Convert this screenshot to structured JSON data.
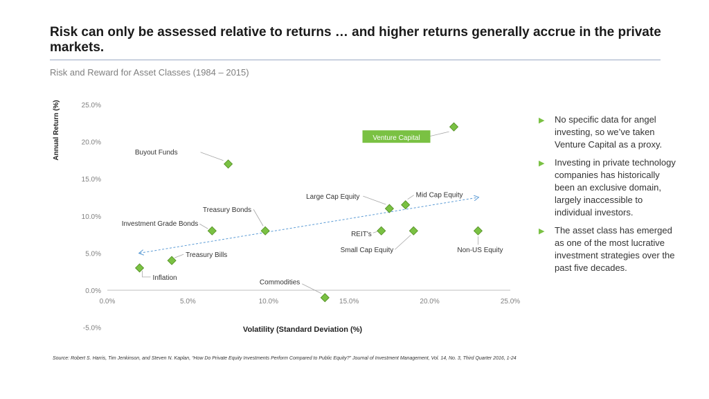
{
  "page": {
    "title": "Risk can only be assessed relative to returns … and higher returns generally accrue in the private markets.",
    "subtitle": "Risk and Reward for Asset Classes (1984 – 2015)",
    "source": "Source: Robert S. Harris, Tim Jenkinson, and Steven N. Kaplan, “How Do Private Equity Investments Perform Compared to Public Equity?” Journal of Investment Management, Vol. 14, No. 3, Third Quarter 2016, 1-24"
  },
  "bullets": [
    "No specific data for angel investing, so we’ve taken Venture Capital as a proxy.",
    "Investing in private technology companies has historically been an exclusive domain, largely inaccessible to individual investors.",
    "The asset class has emerged as one of the most lucrative investment strategies over the past five decades."
  ],
  "colors": {
    "marker": "#7ac143",
    "marker_edge": "#4e8a1e",
    "trend": "#5b9bd5",
    "highlight": "#7ac143"
  },
  "chart_data": {
    "type": "scatter",
    "title": "Risk and Reward for Asset Classes (1984 – 2015)",
    "xlabel": "Volatility (Standard Deviation (%)",
    "ylabel": "Annual Return (%)",
    "xlim": [
      0,
      25
    ],
    "ylim": [
      -5,
      25
    ],
    "xticks": [
      "0.0%",
      "5.0%",
      "10.0%",
      "15.0%",
      "20.0%",
      "25.0%"
    ],
    "yticks": [
      "-5.0%",
      "0.0%",
      "5.0%",
      "10.0%",
      "15.0%",
      "20.0%",
      "25.0%"
    ],
    "points": [
      {
        "label": "Venture Capital",
        "x": 21.5,
        "y": 22.0,
        "highlight": true
      },
      {
        "label": "Buyout Funds",
        "x": 7.5,
        "y": 17.0
      },
      {
        "label": "Mid Cap Equity",
        "x": 18.5,
        "y": 11.5
      },
      {
        "label": "Large Cap Equity",
        "x": 17.5,
        "y": 11.0
      },
      {
        "label": "Treasury Bonds",
        "x": 9.8,
        "y": 8.0
      },
      {
        "label": "Investment Grade Bonds",
        "x": 6.5,
        "y": 8.0
      },
      {
        "label": "REIT's",
        "x": 17.0,
        "y": 8.0
      },
      {
        "label": "Small Cap Equity",
        "x": 19.0,
        "y": 8.0
      },
      {
        "label": "Non-US Equity",
        "x": 23.0,
        "y": 8.0
      },
      {
        "label": "Treasury Bills",
        "x": 4.0,
        "y": 4.0
      },
      {
        "label": "Inflation",
        "x": 2.0,
        "y": 3.0
      },
      {
        "label": "Commodities",
        "x": 13.5,
        "y": -1.0
      }
    ],
    "trendline": {
      "x": [
        2.0,
        23.0
      ],
      "y": [
        5.0,
        12.5
      ],
      "style": "dashed",
      "arrows": "both"
    }
  }
}
